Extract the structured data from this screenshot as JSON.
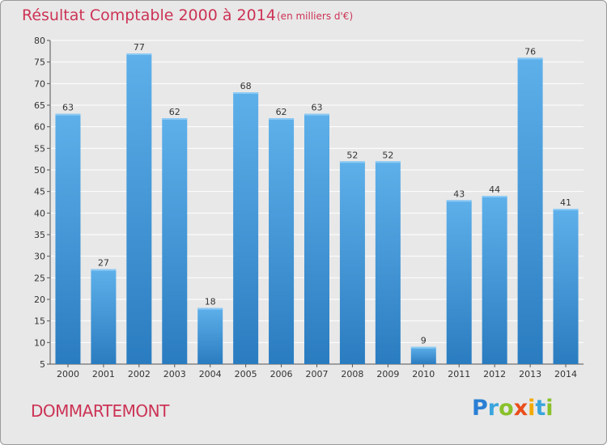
{
  "chart_data": {
    "type": "bar",
    "title": "Résultat Comptable 2000 à 2014",
    "subtitle": "(en milliers d'€)",
    "categories": [
      "2000",
      "2001",
      "2002",
      "2003",
      "2004",
      "2005",
      "2006",
      "2007",
      "2008",
      "2009",
      "2010",
      "2011",
      "2012",
      "2013",
      "2014"
    ],
    "values": [
      63,
      27,
      77,
      62,
      18,
      68,
      62,
      63,
      52,
      52,
      9,
      43,
      44,
      76,
      41
    ],
    "ylim": [
      5,
      80
    ],
    "yticks": [
      5,
      10,
      15,
      20,
      25,
      30,
      35,
      40,
      45,
      50,
      55,
      60,
      65,
      70,
      75,
      80
    ],
    "grid": true,
    "colors": {
      "bar_light": "#5eb0ea",
      "bar_dark": "#2a7cc0",
      "title": "#cc3355",
      "grid": "#ffffff",
      "background": "#e8e8e8"
    }
  },
  "commune": "DOMMARTEMONT",
  "logo": {
    "text": "Proxiti"
  }
}
